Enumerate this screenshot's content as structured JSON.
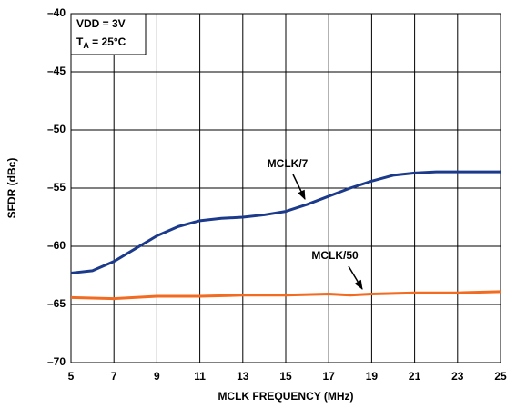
{
  "chart_data": {
    "type": "line",
    "x_label": "MCLK FREQUENCY (MHz)",
    "y_label": "SFDR (dBc)",
    "annotations": [
      "VDD = 3V",
      {
        "main": "T",
        "sub": "A",
        "rest": " = 25°C"
      }
    ],
    "xlim": [
      5,
      25
    ],
    "xticks": [
      5,
      7,
      9,
      11,
      13,
      15,
      17,
      19,
      21,
      23,
      25
    ],
    "ylim": [
      -70,
      -40
    ],
    "yticks": [
      {
        "value": -40,
        "label": "–40"
      },
      {
        "value": -45,
        "label": "–45"
      },
      {
        "value": -50,
        "label": "–50"
      },
      {
        "value": -55,
        "label": "–55"
      },
      {
        "value": -60,
        "label": "–60"
      },
      {
        "value": -65,
        "label": "–65"
      },
      {
        "value": -70,
        "label": "–70"
      }
    ],
    "grid": true,
    "series": [
      {
        "name": "MCLK/7",
        "color": "#1c3a8c",
        "x": [
          5,
          6,
          7,
          8,
          9,
          10,
          11,
          12,
          13,
          14,
          15,
          16,
          17,
          18,
          19,
          20,
          21,
          22,
          23,
          24,
          25
        ],
        "values": [
          -62.3,
          -62.1,
          -61.3,
          -60.2,
          -59.1,
          -58.3,
          -57.8,
          -57.6,
          -57.5,
          -57.3,
          -57.0,
          -56.4,
          -55.7,
          -55.0,
          -54.4,
          -53.9,
          -53.7,
          -53.6,
          -53.6,
          -53.6,
          -53.6
        ]
      },
      {
        "name": "MCLK/50",
        "color": "#f26b21",
        "x": [
          5,
          7,
          9,
          11,
          13,
          15,
          17,
          18,
          19,
          21,
          23,
          25
        ],
        "values": [
          -64.4,
          -64.5,
          -64.3,
          -64.3,
          -64.2,
          -64.2,
          -64.1,
          -64.2,
          -64.1,
          -64.0,
          -64.0,
          -63.9
        ]
      }
    ]
  }
}
